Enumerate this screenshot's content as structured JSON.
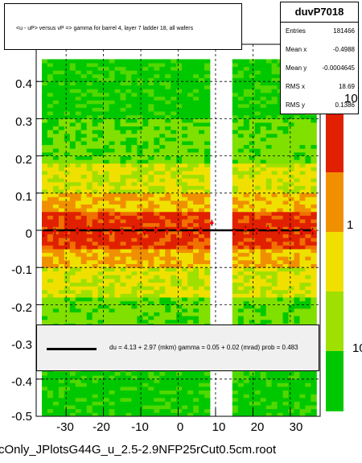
{
  "chart_data": {
    "type": "heatmap",
    "title": "<u - uP>       versus   vP =>  gamma for barrel 4, layer 7 ladder 18, all wafers",
    "xlabel": "",
    "ylabel": "",
    "xlim": [
      -38,
      38
    ],
    "ylim": [
      -0.5,
      0.5
    ],
    "x_ticks": [
      "-30",
      "-20",
      "-10",
      "0",
      "10",
      "20",
      "30"
    ],
    "x_tick_values": [
      -30,
      -20,
      -10,
      0,
      10,
      20,
      30
    ],
    "y_ticks": [
      "0.4",
      "0.3",
      "0.2",
      "0.1",
      "0",
      "-0.1",
      "-0.2",
      "-0.3",
      "-0.4",
      "-0.5"
    ],
    "y_tick_values": [
      0.4,
      0.3,
      0.2,
      0.1,
      0,
      -0.1,
      -0.2,
      -0.3,
      -0.4,
      -0.5
    ],
    "z_ticks": [
      "10",
      "1",
      "10"
    ],
    "z_tick_values": [
      10,
      1,
      10
    ],
    "grid": true,
    "colors": {
      "low": "#00c800",
      "mid": "#f0e000",
      "high": "#e02000",
      "fit": "#000000",
      "profile": "#ff0000"
    },
    "data_gaps_x": [
      [
        9,
        14
      ]
    ],
    "profile_x": [
      -36,
      -33,
      -30,
      -27,
      -24,
      -21,
      -18,
      -15,
      -12,
      -9,
      -6,
      -3,
      0,
      3,
      6,
      9,
      15,
      18,
      21,
      24,
      27,
      30,
      33,
      36
    ],
    "profile_y": [
      -0.008,
      -0.003,
      -0.006,
      -0.001,
      0.004,
      -0.009,
      -0.004,
      -0.002,
      0.003,
      -0.005,
      0.001,
      -0.003,
      0.002,
      -0.006,
      -0.001,
      0.02,
      -0.004,
      0.003,
      -0.002,
      0.005,
      -0.001,
      0.004,
      -0.003,
      -0.002
    ],
    "fit_line": {
      "x": [
        -36,
        36
      ],
      "y": [
        0,
        0
      ]
    },
    "stats": {
      "name": "duvP7018",
      "rows": [
        {
          "label": "Entries",
          "value": "181466"
        },
        {
          "label": "Mean x",
          "value": "-0.4988"
        },
        {
          "label": "Mean y",
          "value": "-0.0004645"
        },
        {
          "label": "RMS x",
          "value": "18.69"
        },
        {
          "label": "RMS y",
          "value": "0.1386"
        }
      ]
    },
    "fit_legend": "du =     4.13 +   2.97 (mkm) gamma =     0.05 +   0.02 (mrad) prob = 0.483"
  },
  "footer": {
    "filename": "cOnly_JPlotsG44G_u_2.5-2.9NFP25rCut0.5cm.root"
  }
}
